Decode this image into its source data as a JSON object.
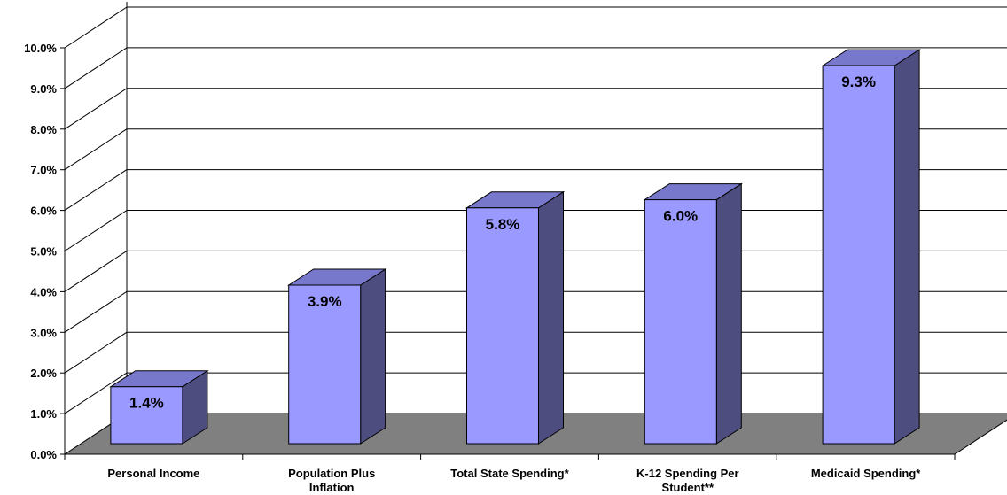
{
  "chart_data": {
    "type": "bar",
    "categories": [
      [
        "Personal Income"
      ],
      [
        "Population Plus",
        "Inflation"
      ],
      [
        "Total State Spending*"
      ],
      [
        "K-12 Spending Per",
        "Student**"
      ],
      [
        "Medicaid Spending*"
      ]
    ],
    "values": [
      1.4,
      3.9,
      5.8,
      6.0,
      9.3
    ],
    "data_labels": [
      "1.4%",
      "3.9%",
      "5.8%",
      "6.0%",
      "9.3%"
    ],
    "y_ticks": [
      "0.0%",
      "1.0%",
      "2.0%",
      "3.0%",
      "4.0%",
      "5.0%",
      "6.0%",
      "7.0%",
      "8.0%",
      "9.0%",
      "10.0%"
    ],
    "ylim": [
      0,
      10
    ],
    "grid": true,
    "legend": "none",
    "three_d": true,
    "title": "",
    "xlabel": "",
    "ylabel": "",
    "colors": {
      "bar_front": "#9999ff",
      "bar_top": "#7777cc",
      "bar_side": "#4d4d7f",
      "floor": "#808080",
      "gridline": "#000000"
    }
  }
}
